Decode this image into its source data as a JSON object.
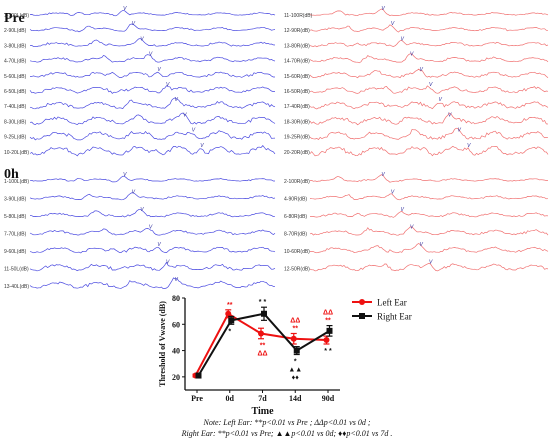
{
  "panels": {
    "pre_label": "Pre",
    "oh_label": "0h"
  },
  "wave_rows": {
    "pre": {
      "left": [
        "1-100L(dB)",
        "2-90L(dB)",
        "3-80L(dB)",
        "4-70L(dB)",
        "5-60L(dB)",
        "6-50L(dB)",
        "7-40L(dB)",
        "8-30L(dB)",
        "9-25L(dB)",
        "10-20L(dB)"
      ],
      "right": [
        "11-100R(dB)",
        "12-90R(dB)",
        "13-80R(dB)",
        "14-70R(dB)",
        "15-60R(dB)",
        "16-50R(dB)",
        "17-40R(dB)",
        "18-30R(dB)",
        "19-25R(dB)",
        "20-20R(dB)"
      ]
    },
    "oh": {
      "left": [
        "1-100L(dB)",
        "3-90L(dB)",
        "5-80L(dB)",
        "7-70L(dB)",
        "9-60L(dB)",
        "11-50L(dB)",
        "13-40L(dB)"
      ],
      "right": [
        "2-100R(dB)",
        "4-90R(dB)",
        "6-80R(dB)",
        "8-70R(dB)",
        "10-60R(dB)",
        "12-50R(dB)"
      ]
    },
    "wave_marker": "V",
    "left_color": "#4a4ae0",
    "right_color": "#f07070"
  },
  "chart_data": {
    "type": "line",
    "categories": [
      "Pre",
      "0d",
      "7d",
      "14d",
      "90d"
    ],
    "xlabel": "Time",
    "ylabel": "Threshold of Vwave (dB)",
    "ylim": [
      10,
      80
    ],
    "yticks": [
      20,
      40,
      60,
      80
    ],
    "grid": false,
    "legend_position": "right",
    "series": [
      {
        "name": "Left Ear",
        "color": "#ee1111",
        "marker": "circle",
        "values": [
          21,
          68,
          53,
          49,
          48
        ],
        "errors": [
          1,
          3,
          4,
          4,
          3
        ]
      },
      {
        "name": "Right Ear",
        "color": "#111111",
        "marker": "square",
        "values": [
          21,
          63,
          68,
          40,
          55
        ],
        "errors": [
          1,
          3,
          5,
          3,
          4
        ]
      }
    ],
    "annotations": [
      {
        "category": "0d",
        "text": "**",
        "color": "#ee1111",
        "side": "above"
      },
      {
        "category": "7d",
        "text": "* *",
        "color": "#111111",
        "side": "above"
      },
      {
        "category": "14d",
        "text": "**",
        "color": "#ee1111",
        "side": "above"
      },
      {
        "category": "14d",
        "text": "ΔΔ",
        "color": "#ee1111",
        "side": "above"
      },
      {
        "category": "90d",
        "text": "**",
        "color": "#ee1111",
        "side": "above"
      },
      {
        "category": "90d",
        "text": "ΔΔ",
        "color": "#ee1111",
        "side": "above"
      },
      {
        "category": "0d",
        "text": "*",
        "color": "#111111",
        "side": "below"
      },
      {
        "category": "7d",
        "text": "**",
        "color": "#ee1111",
        "side": "below"
      },
      {
        "category": "7d",
        "text": "ΔΔ",
        "color": "#ee1111",
        "side": "below"
      },
      {
        "category": "14d",
        "text": "*",
        "color": "#111111",
        "side": "below"
      },
      {
        "category": "14d",
        "text": "▲▲",
        "color": "#111111",
        "side": "below"
      },
      {
        "category": "14d",
        "text": "♦♦",
        "color": "#111111",
        "side": "below"
      },
      {
        "category": "90d",
        "text": "* *",
        "color": "#111111",
        "side": "below"
      }
    ],
    "note_line1": "Note: Left Ear: **p<0.01 vs Pre ; ΔΔp<0.01 vs 0d ;",
    "note_line2": "Right Ear: **p<0.01 vs Pre; ▲▲p<0.01 vs 0d; ♦♦p<0.01 vs 7d ."
  }
}
